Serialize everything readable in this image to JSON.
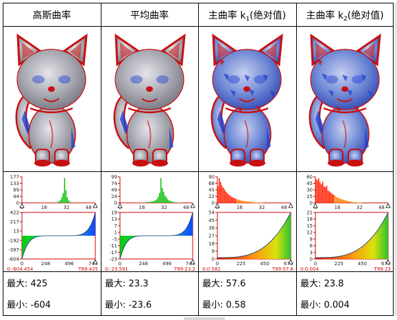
{
  "columns": [
    {
      "header_main": "高斯曲率",
      "header_sub": "",
      "header_tail": "",
      "histogram": {
        "y_ticks": [
          "177",
          "133",
          "89",
          "44",
          "0"
        ],
        "x_ticks": [
          "0",
          "16",
          "32",
          "48"
        ],
        "peak_bin": 31,
        "counts": [
          0,
          0,
          0,
          0,
          0,
          0,
          0,
          0,
          0,
          0,
          0,
          0,
          0,
          0,
          0,
          0,
          0,
          0,
          0,
          0,
          0,
          0,
          0,
          1,
          2,
          4,
          6,
          10,
          20,
          40,
          70,
          177,
          90,
          40,
          18,
          8,
          4,
          2,
          1,
          0,
          0,
          0,
          0,
          0,
          0,
          0,
          0,
          0,
          0,
          0,
          0,
          0,
          0,
          0
        ],
        "colormap": "green"
      },
      "curve": {
        "y_ticks": [
          "422",
          "217",
          "13",
          "-192",
          "-397",
          "-604"
        ],
        "x_ticks": [
          "0",
          "248",
          "496",
          "744"
        ],
        "start_label": "0:-604.454",
        "end_label": "T99:425",
        "y_min": -604,
        "y_max": 425,
        "shape": "symmetric",
        "colormap": "blue-green"
      },
      "max_label": "最大:",
      "max_value": "425",
      "min_label": "最小:",
      "min_value": "-604"
    },
    {
      "header_main": "平均曲率",
      "header_sub": "",
      "header_tail": "",
      "histogram": {
        "y_ticks": [
          "99",
          "74",
          "49",
          "24",
          "0"
        ],
        "x_ticks": [
          "0",
          "16",
          "32",
          "48"
        ],
        "peak_bin": 30,
        "counts": [
          0,
          0,
          0,
          0,
          0,
          0,
          0,
          0,
          0,
          0,
          0,
          0,
          0,
          0,
          0,
          1,
          1,
          1,
          2,
          2,
          3,
          3,
          4,
          5,
          6,
          8,
          10,
          15,
          25,
          40,
          99,
          60,
          45,
          30,
          22,
          15,
          10,
          8,
          6,
          4,
          3,
          2,
          2,
          1,
          1,
          1,
          0,
          0,
          0,
          0,
          0,
          0,
          0,
          0
        ],
        "colormap": "green"
      },
      "curve": {
        "y_ticks": [
          "19",
          "13",
          "7",
          "1",
          "-5",
          "-11",
          "-17",
          "-23"
        ],
        "x_ticks": [
          "0",
          "248",
          "496",
          "744"
        ],
        "start_label": "0:-23.591",
        "end_label": "T99:23.2",
        "y_min": -23.6,
        "y_max": 23.3,
        "shape": "symmetric",
        "colormap": "blue-green"
      },
      "max_label": "最大:",
      "max_value": "23.3",
      "min_label": "最小:",
      "min_value": "-23.6"
    },
    {
      "header_main": "主曲率 k",
      "header_sub": "1",
      "header_tail": "(绝对值)",
      "histogram": {
        "y_ticks": [
          "90",
          "68",
          "45",
          "22",
          "0"
        ],
        "x_ticks": [
          "0",
          "16",
          "32",
          "48"
        ],
        "peak_bin": 1,
        "counts": [
          60,
          90,
          75,
          62,
          55,
          48,
          40,
          35,
          30,
          26,
          22,
          20,
          18,
          15,
          13,
          12,
          10,
          9,
          8,
          7,
          6,
          5,
          5,
          4,
          4,
          3,
          3,
          2,
          2,
          2,
          1,
          1,
          1,
          1,
          0,
          0,
          0,
          0,
          0,
          0,
          0,
          0,
          0,
          0,
          0,
          0,
          0,
          0,
          0,
          0,
          0,
          0,
          0,
          0
        ],
        "colormap": "warm"
      },
      "curve": {
        "y_ticks": [
          "54",
          "45",
          "36",
          "27",
          "18",
          "9",
          "0"
        ],
        "x_ticks": [
          "0",
          "225",
          "450",
          "675"
        ],
        "start_label": "0:0.582",
        "end_label": "T99:57.6",
        "y_min": 0,
        "y_max": 57.6,
        "shape": "rising",
        "colormap": "warm-green"
      },
      "max_label": "最大:",
      "max_value": "57.6",
      "min_label": "最小:",
      "min_value": "0.58"
    },
    {
      "header_main": "主曲率 k",
      "header_sub": "2",
      "header_tail": "(绝对值)",
      "histogram": {
        "y_ticks": [
          "60",
          "45",
          "30",
          "15",
          "0"
        ],
        "x_ticks": [
          "0",
          "16",
          "32",
          "48"
        ],
        "peak_bin": 2,
        "counts": [
          58,
          55,
          60,
          50,
          45,
          52,
          40,
          38,
          42,
          30,
          28,
          25,
          22,
          20,
          18,
          15,
          13,
          12,
          10,
          9,
          8,
          7,
          6,
          5,
          4,
          4,
          3,
          3,
          2,
          2,
          2,
          1,
          1,
          1,
          1,
          0,
          0,
          0,
          0,
          0,
          0,
          0,
          0,
          0,
          0,
          0,
          0,
          0,
          0,
          0,
          0,
          0,
          0,
          0
        ],
        "colormap": "warm"
      },
      "curve": {
        "y_ticks": [
          "21",
          "18",
          "15",
          "12",
          "9",
          "6",
          "3",
          "0"
        ],
        "x_ticks": [
          "0",
          "225",
          "450",
          "675"
        ],
        "start_label": "0:0.004",
        "end_label": "T99:23",
        "y_min": 0,
        "y_max": 23.8,
        "shape": "rising",
        "colormap": "warm-green"
      },
      "max_label": "最大:",
      "max_value": "23.8",
      "min_label": "最小:",
      "min_value": "0.004"
    }
  ],
  "colors": {
    "border": "#000000",
    "axis_red": "#d00000",
    "model_gray": "#a8a8b0",
    "curvature_red": "#c81010",
    "curvature_blue": "#2040d0"
  }
}
